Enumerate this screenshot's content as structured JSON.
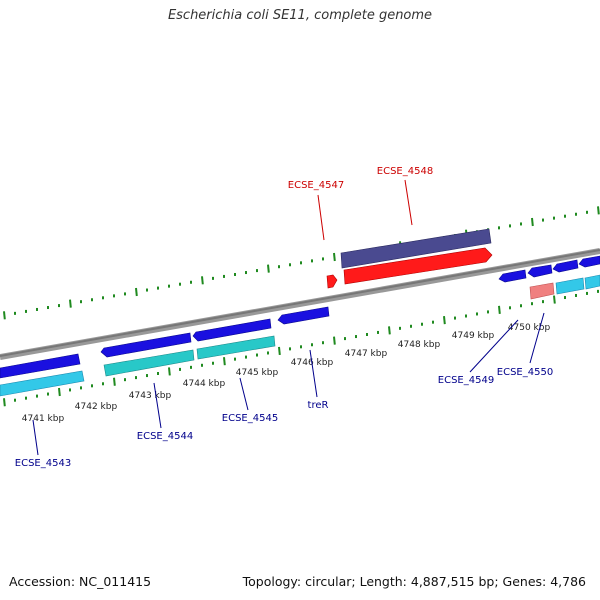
{
  "title": "Escherichia coli SE11, complete genome",
  "footer": {
    "accession": "Accession: NC_011415",
    "info": "Topology: circular; Length: 4,887,515 bp; Genes: 4,786"
  },
  "colors": {
    "backbone": "#808080",
    "gc_dots": "#1f8a1f",
    "blue_gene": "#1a10e0",
    "cyan_gene": "#33c8e8",
    "teal_gene": "#28c8c8",
    "red_gene": "#ff1a1a",
    "pink_gene": "#f08080",
    "purple_gene": "#4a4a90",
    "label_blue": "#00008b",
    "label_red": "#cc0000"
  },
  "ticks": [
    {
      "label": "4741 kbp"
    },
    {
      "label": "4742 kbp"
    },
    {
      "label": "4743 kbp"
    },
    {
      "label": "4744 kbp"
    },
    {
      "label": "4745 kbp"
    },
    {
      "label": "4746 kbp"
    },
    {
      "label": "4747 kbp"
    },
    {
      "label": "4748 kbp"
    },
    {
      "label": "4749 kbp"
    },
    {
      "label": "4750 kbp"
    }
  ],
  "gene_labels": [
    {
      "name": "ECSE_4543",
      "strand": "reverse",
      "color": "blue"
    },
    {
      "name": "ECSE_4544",
      "strand": "reverse",
      "color": "blue"
    },
    {
      "name": "ECSE_4545",
      "strand": "reverse",
      "color": "blue"
    },
    {
      "name": "treR",
      "strand": "reverse",
      "color": "blue"
    },
    {
      "name": "ECSE_4547",
      "strand": "forward",
      "color": "red"
    },
    {
      "name": "ECSE_4548",
      "strand": "forward",
      "color": "red"
    },
    {
      "name": "ECSE_4549",
      "strand": "reverse",
      "color": "blue"
    },
    {
      "name": "ECSE_4550",
      "strand": "reverse",
      "color": "blue"
    }
  ]
}
